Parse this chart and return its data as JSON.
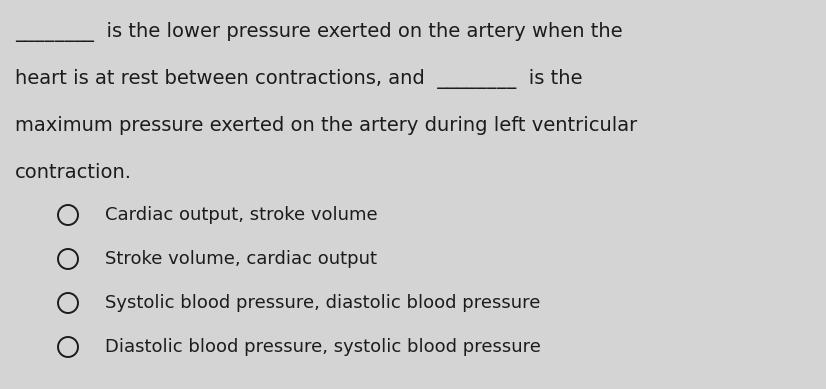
{
  "background_color": "#d4d4d4",
  "text_color": "#1c1c1c",
  "question_lines": [
    "________  is the lower pressure exerted on the artery when the",
    "heart is at rest between contractions, and  ________  is the",
    "maximum pressure exerted on the artery during left ventricular",
    "contraction."
  ],
  "options": [
    "Cardiac output, stroke volume",
    "Stroke volume, cardiac output",
    "Systolic blood pressure, diastolic blood pressure",
    "Diastolic blood pressure, systolic blood pressure"
  ],
  "question_fontsize": 14,
  "option_fontsize": 13,
  "fig_width": 8.26,
  "fig_height": 3.89,
  "dpi": 100
}
